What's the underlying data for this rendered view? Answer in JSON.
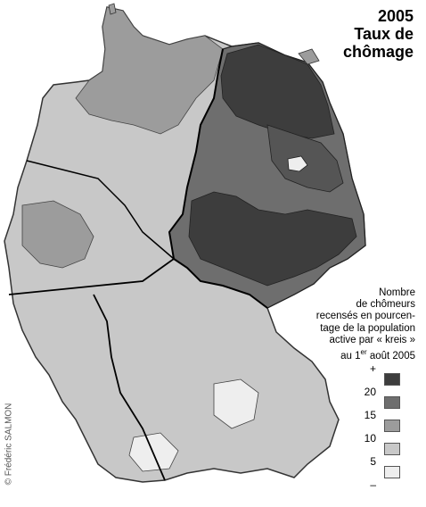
{
  "title": {
    "year": "2005",
    "line1": "Taux de",
    "line2": "chômage"
  },
  "legend": {
    "lines": [
      "Nombre",
      "de chômeurs",
      "recensés en pourcen-",
      "tage de la population",
      "active par « kreis »",
      "au 1er août 2005"
    ],
    "scale_labels": [
      "+",
      "20",
      "15",
      "10",
      "5",
      "–"
    ],
    "classes": [
      {
        "range": "> 20",
        "color": "#3d3d3d"
      },
      {
        "range": "15–20",
        "color": "#6e6e6e"
      },
      {
        "range": "10–15",
        "color": "#9c9c9c"
      },
      {
        "range": "5–10",
        "color": "#c8c8c8"
      },
      {
        "range": "< 5",
        "color": "#eeeeee"
      }
    ]
  },
  "credit": "© Frédéric SALMON",
  "regions": [
    {
      "name": "north-east",
      "class": 0
    },
    {
      "name": "east-central",
      "class": 1
    },
    {
      "name": "north",
      "class": 2
    },
    {
      "name": "west",
      "class": 3
    },
    {
      "name": "south",
      "class": 3
    },
    {
      "name": "south-pockets",
      "class": 4
    }
  ]
}
